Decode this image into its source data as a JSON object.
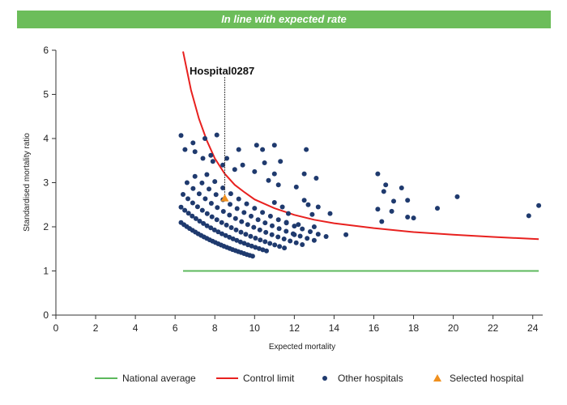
{
  "banner": {
    "text": "In line with expected rate",
    "color": "#6cbd5a"
  },
  "chart_data": {
    "type": "scatter",
    "xlabel": "Expected mortality",
    "ylabel": "Standardised mortality ratio",
    "xlim": [
      0,
      24.5
    ],
    "ylim": [
      0,
      6
    ],
    "xticks": [
      0,
      2,
      4,
      6,
      8,
      10,
      12,
      14,
      16,
      18,
      20,
      22,
      24
    ],
    "yticks": [
      0,
      1,
      2,
      3,
      4,
      5,
      6
    ],
    "grid": false,
    "legend_position": "bottom",
    "legend": [
      "National average",
      "Control limit",
      "Other hospitals",
      "Selected hospital"
    ],
    "colors": {
      "national_average": "#5cb85c",
      "control_limit": "#e8211f",
      "other_hospitals": "#1f3a6e",
      "selected_hospital": "#f0901e"
    },
    "national_average": {
      "x": [
        6.4,
        24.3
      ],
      "y": [
        1,
        1
      ]
    },
    "control_limit": {
      "x": [
        6.4,
        6.8,
        7.2,
        7.6,
        8.0,
        8.5,
        9.0,
        9.5,
        10.0,
        11.0,
        12.0,
        13.0,
        14.0,
        16.0,
        18.0,
        20.0,
        22.0,
        24.3
      ],
      "y": [
        5.97,
        5.1,
        4.45,
        3.95,
        3.55,
        3.2,
        2.95,
        2.78,
        2.62,
        2.42,
        2.27,
        2.16,
        2.08,
        1.97,
        1.88,
        1.82,
        1.77,
        1.72
      ]
    },
    "selected_hospital": {
      "name": "Hospital0287",
      "x": 8.5,
      "y": 2.65
    },
    "other_hospitals": [
      [
        6.3,
        4.07
      ],
      [
        6.9,
        3.9
      ],
      [
        7.5,
        4.0
      ],
      [
        8.1,
        4.08
      ],
      [
        6.5,
        3.75
      ],
      [
        7.0,
        3.7
      ],
      [
        7.8,
        3.62
      ],
      [
        8.6,
        3.55
      ],
      [
        9.2,
        3.75
      ],
      [
        10.1,
        3.85
      ],
      [
        10.4,
        3.75
      ],
      [
        11.0,
        3.85
      ],
      [
        12.6,
        3.75
      ],
      [
        7.4,
        3.55
      ],
      [
        7.9,
        3.48
      ],
      [
        8.4,
        3.4
      ],
      [
        9.4,
        3.4
      ],
      [
        10.5,
        3.45
      ],
      [
        11.3,
        3.48
      ],
      [
        9.0,
        3.3
      ],
      [
        10.0,
        3.25
      ],
      [
        11.0,
        3.2
      ],
      [
        12.5,
        3.2
      ],
      [
        13.1,
        3.1
      ],
      [
        16.2,
        3.2
      ],
      [
        16.6,
        2.95
      ],
      [
        17.4,
        2.88
      ],
      [
        16.5,
        2.8
      ],
      [
        17.7,
        2.6
      ],
      [
        17.0,
        2.58
      ],
      [
        16.2,
        2.4
      ],
      [
        16.9,
        2.35
      ],
      [
        16.4,
        2.12
      ],
      [
        17.7,
        2.22
      ],
      [
        18.0,
        2.2
      ],
      [
        19.2,
        2.42
      ],
      [
        20.2,
        2.68
      ],
      [
        23.8,
        2.25
      ],
      [
        24.3,
        2.48
      ],
      [
        13.8,
        2.3
      ],
      [
        14.6,
        1.82
      ],
      [
        12.0,
        1.82
      ],
      [
        13.0,
        2.0
      ],
      [
        12.5,
        2.6
      ],
      [
        12.9,
        2.28
      ],
      [
        13.2,
        2.45
      ],
      [
        11.7,
        2.3
      ],
      [
        11.6,
        2.1
      ],
      [
        12.2,
        2.05
      ],
      [
        11.4,
        2.45
      ],
      [
        11.0,
        2.55
      ],
      [
        11.2,
        2.95
      ],
      [
        10.7,
        3.05
      ],
      [
        12.1,
        2.9
      ],
      [
        12.7,
        2.5
      ]
    ],
    "other_hospitals_note": "bulk of points follow funnel arcs for k-values",
    "arc_multipliers": [
      13.2,
      15.4,
      17.5,
      19.8,
      22.0,
      24.2
    ],
    "arc_x_ranges": [
      [
        6.3,
        9.9
      ],
      [
        6.3,
        10.6
      ],
      [
        6.4,
        11.5
      ],
      [
        6.6,
        12.4
      ],
      [
        7.0,
        13.0
      ],
      [
        7.6,
        13.6
      ]
    ],
    "arc_point_counts": [
      26,
      24,
      22,
      20,
      18,
      16
    ]
  },
  "callout": {
    "label": "Hospital0287"
  }
}
